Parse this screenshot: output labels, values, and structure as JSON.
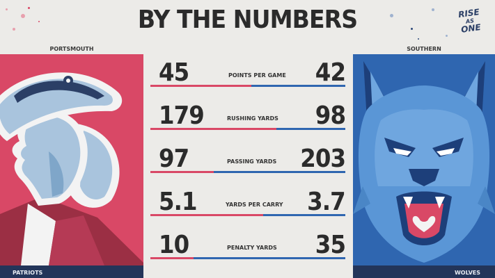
{
  "title": "BY THE NUMBERS",
  "brand": {
    "line1": "RISE",
    "line2": "AS",
    "line3": "ONE"
  },
  "left_team": {
    "school": "PORTSMOUTH",
    "name": "PATRIOTS"
  },
  "right_team": {
    "school": "SOUTHERN",
    "name": "WOLVES"
  },
  "colors": {
    "left": "#d94866",
    "right": "#2f66b0",
    "dark": "#23355a"
  },
  "stats": [
    {
      "label": "POINTS PER GAME",
      "left": "45",
      "right": "42"
    },
    {
      "label": "RUSHING YARDS",
      "left": "179",
      "right": "98"
    },
    {
      "label": "PASSING YARDS",
      "left": "97",
      "right": "203"
    },
    {
      "label": "YARDS PER CARRY",
      "left": "5.1",
      "right": "3.7"
    },
    {
      "label": "PENALTY YARDS",
      "left": "10",
      "right": "35"
    }
  ]
}
